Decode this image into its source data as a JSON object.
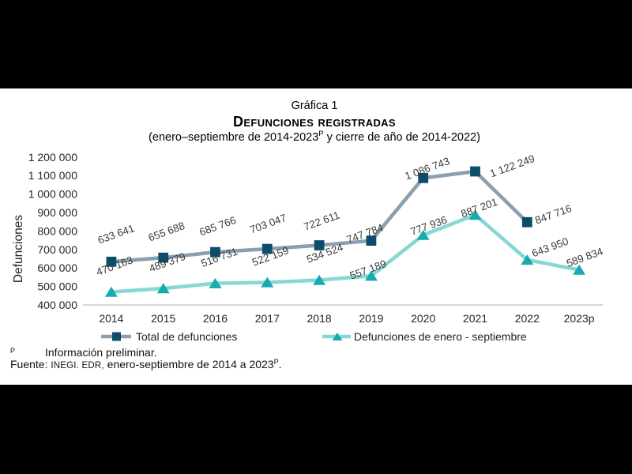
{
  "chart": {
    "title": "Gráfica 1",
    "main_title": "Defunciones registradas",
    "subtitle_prefix": "(enero–septiembre de 2014-2023",
    "subtitle_sup": "P",
    "subtitle_suffix": " y cierre de año de 2014-2022)",
    "ylabel": "Defunciones"
  },
  "legend": [
    {
      "label": "Total de defunciones",
      "marker": "square"
    },
    {
      "label": "Defunciones de enero - septiembre",
      "marker": "triangle"
    }
  ],
  "footnotes": {
    "note_sup": "P",
    "note_text": "Información preliminar.",
    "source_label": "Fuente:",
    "source_caps": "INEGI. EDR,",
    "source_text": " enero-septiembre de 2014 a 2023",
    "source_sup": "P",
    "source_end": "."
  },
  "colors": {
    "navy": "#0e4c6b",
    "gray_line": "#8c9fae",
    "teal": "#18aab0",
    "teal_line": "#87d8d2",
    "axis_line": "#c9c9c9",
    "label_text": "#3a3a3a",
    "tick_text": "#262626"
  },
  "chart_data": {
    "type": "line",
    "categories": [
      "2014",
      "2015",
      "2016",
      "2017",
      "2018",
      "2019",
      "2020",
      "2021",
      "2022",
      "2023p"
    ],
    "series": [
      {
        "name": "Total de defunciones",
        "marker": "square",
        "values": [
          633641,
          655688,
          685766,
          703047,
          722611,
          747784,
          1086743,
          1122249,
          847716
        ],
        "labels": [
          "633 641",
          "655 688",
          "685 766",
          "703 047",
          "722 611",
          "747 784",
          "1 086 743",
          "1 122 249",
          "847 716"
        ]
      },
      {
        "name": "Defunciones de enero - septiembre",
        "marker": "triangle",
        "values": [
          470163,
          489379,
          516731,
          522159,
          534524,
          557189,
          777936,
          887201,
          643950,
          589834
        ],
        "labels": [
          "470 163",
          "489 379",
          "516 731",
          "522 159",
          "534 524",
          "557 189",
          "777 936",
          "887 201",
          "643 950",
          "589 834"
        ]
      }
    ],
    "ylabel": "Defunciones",
    "ytick_values": [
      400000,
      500000,
      600000,
      700000,
      800000,
      900000,
      1000000,
      1100000,
      1200000
    ],
    "ytick_labels": [
      "400 000",
      "500 000",
      "600 000",
      "700 000",
      "800 000",
      "900 000",
      "1 000 000",
      "1 100 000",
      "1 200 000"
    ],
    "ylim": [
      400000,
      1200000
    ],
    "grid": false,
    "legend_position": "bottom"
  }
}
